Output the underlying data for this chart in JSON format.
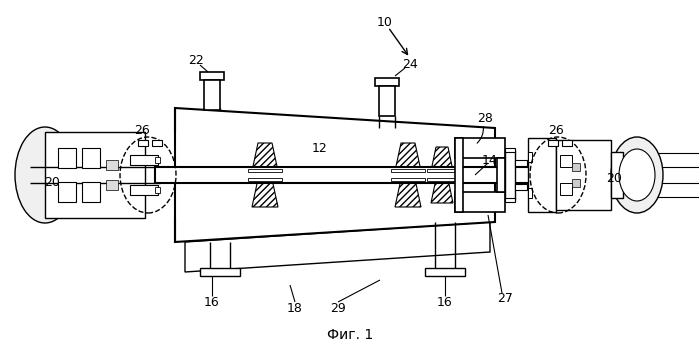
{
  "bg_color": "#ffffff",
  "line_color": "#000000",
  "title": "Фиг. 1",
  "figsize": [
    6.99,
    3.5
  ],
  "dpi": 100
}
